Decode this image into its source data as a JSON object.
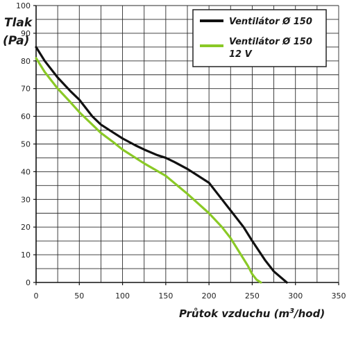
{
  "chart_data": {
    "type": "line",
    "xlabel_main": "Průtok vzduchu (m",
    "xlabel_sup": "3",
    "xlabel_end": "/hod)",
    "ylabel_line1": "Tlak",
    "ylabel_line2": "(Pa)",
    "xlim": [
      0,
      350
    ],
    "ylim": [
      0,
      100
    ],
    "x_ticks": [
      0,
      50,
      100,
      150,
      200,
      250,
      300,
      350
    ],
    "y_ticks": [
      0,
      10,
      20,
      30,
      40,
      50,
      60,
      70,
      80,
      90,
      100
    ],
    "x_minor_step": 25,
    "y_minor_step": 5,
    "grid": true,
    "legend_position": "top-right",
    "series": [
      {
        "name_line1": "Ventilátor Ø 150",
        "name_line2": "",
        "color": "#111111",
        "x": [
          0,
          10,
          25,
          40,
          50,
          65,
          75,
          90,
          100,
          115,
          125,
          140,
          150,
          160,
          175,
          185,
          200,
          210,
          225,
          240,
          250,
          265,
          275,
          290
        ],
        "y": [
          85,
          80,
          74,
          69,
          66,
          60,
          57,
          54,
          52,
          49.5,
          48,
          46,
          45,
          43.5,
          41,
          39,
          36,
          32,
          26,
          20,
          15,
          8,
          4,
          0
        ]
      },
      {
        "name_line1": "Ventilátor Ø 150",
        "name_line2": "12 V",
        "color": "#8ac926",
        "x": [
          0,
          10,
          25,
          40,
          50,
          65,
          75,
          90,
          100,
          125,
          150,
          175,
          200,
          215,
          225,
          235,
          245,
          250,
          255,
          260
        ],
        "y": [
          81,
          76,
          70,
          65,
          61.5,
          57,
          54,
          50.5,
          48,
          43,
          38.5,
          32,
          25,
          20,
          16,
          11,
          6,
          3,
          1,
          0
        ]
      }
    ]
  }
}
